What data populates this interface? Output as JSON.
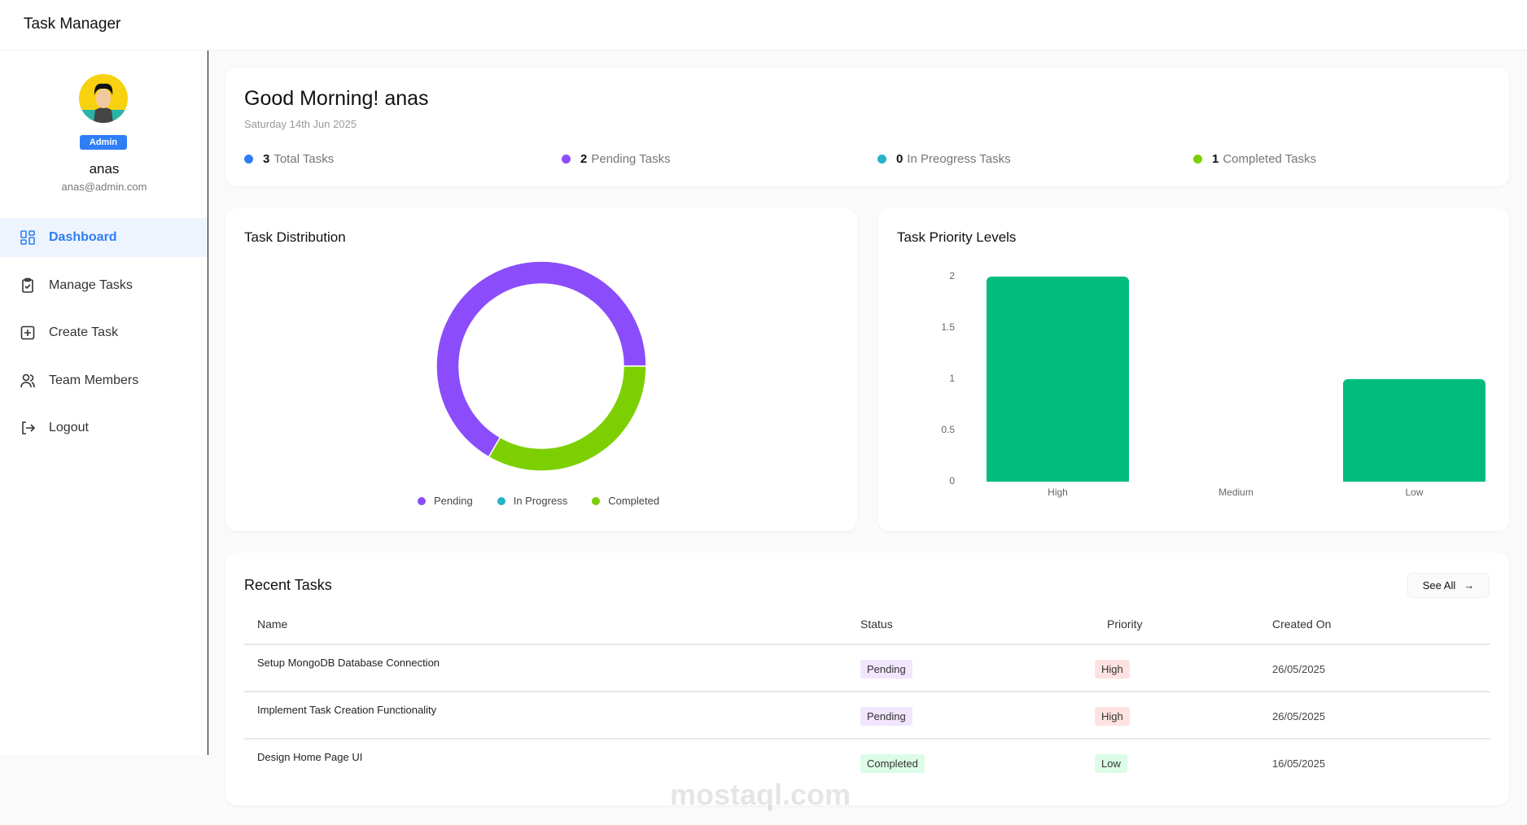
{
  "app": {
    "title": "Task Manager"
  },
  "user": {
    "name": "anas",
    "email": "anas@admin.com",
    "role": "Admin"
  },
  "sidebar": {
    "items": [
      {
        "label": "Dashboard",
        "icon": "dashboard-grid-icon",
        "active": true
      },
      {
        "label": "Manage Tasks",
        "icon": "clipboard-check-icon"
      },
      {
        "label": "Create Task",
        "icon": "plus-square-icon"
      },
      {
        "label": "Team Members",
        "icon": "users-icon"
      },
      {
        "label": "Logout",
        "icon": "logout-icon"
      }
    ]
  },
  "greeting": {
    "title": "Good Morning! anas",
    "date": "Saturday 14th Jun 2025",
    "stats": [
      {
        "count": "3",
        "label": "Total Tasks",
        "color": "#2f7ef6"
      },
      {
        "count": "2",
        "label": "Pending Tasks",
        "color": "#8b4dfb"
      },
      {
        "count": "0",
        "label": "In Preogress Tasks",
        "color": "#25b3c7"
      },
      {
        "count": "1",
        "label": "Completed Tasks",
        "color": "#7ccf00"
      }
    ]
  },
  "chart_data": [
    {
      "type": "pie",
      "title": "Task Distribution",
      "donut": true,
      "categories": [
        "Pending",
        "In Progress",
        "Completed"
      ],
      "values": [
        2,
        0,
        1
      ],
      "colors": [
        "#8b4dfb",
        "#25b3c7",
        "#7ccf00"
      ],
      "legend": "bottom"
    },
    {
      "type": "bar",
      "title": "Task Priority Levels",
      "categories": [
        "High",
        "Medium",
        "Low"
      ],
      "values": [
        2,
        0,
        1
      ],
      "yticks": [
        "0",
        "0.5",
        "1",
        "1.5",
        "2"
      ],
      "ylim": [
        0,
        2
      ],
      "color": "#00bd7e",
      "grid": false
    }
  ],
  "recent": {
    "title": "Recent Tasks",
    "see_all": "See All",
    "columns": [
      "Name",
      "Status",
      "Priority",
      "Created On"
    ],
    "rows": [
      {
        "name": "Setup MongoDB Database Connection",
        "status": "Pending",
        "priority": "High",
        "created": "26/05/2025"
      },
      {
        "name": "Implement Task Creation Functionality",
        "status": "Pending",
        "priority": "High",
        "created": "26/05/2025"
      },
      {
        "name": "Design Home Page UI",
        "status": "Completed",
        "priority": "Low",
        "created": "16/05/2025"
      }
    ]
  },
  "watermark": "mostaql.com"
}
